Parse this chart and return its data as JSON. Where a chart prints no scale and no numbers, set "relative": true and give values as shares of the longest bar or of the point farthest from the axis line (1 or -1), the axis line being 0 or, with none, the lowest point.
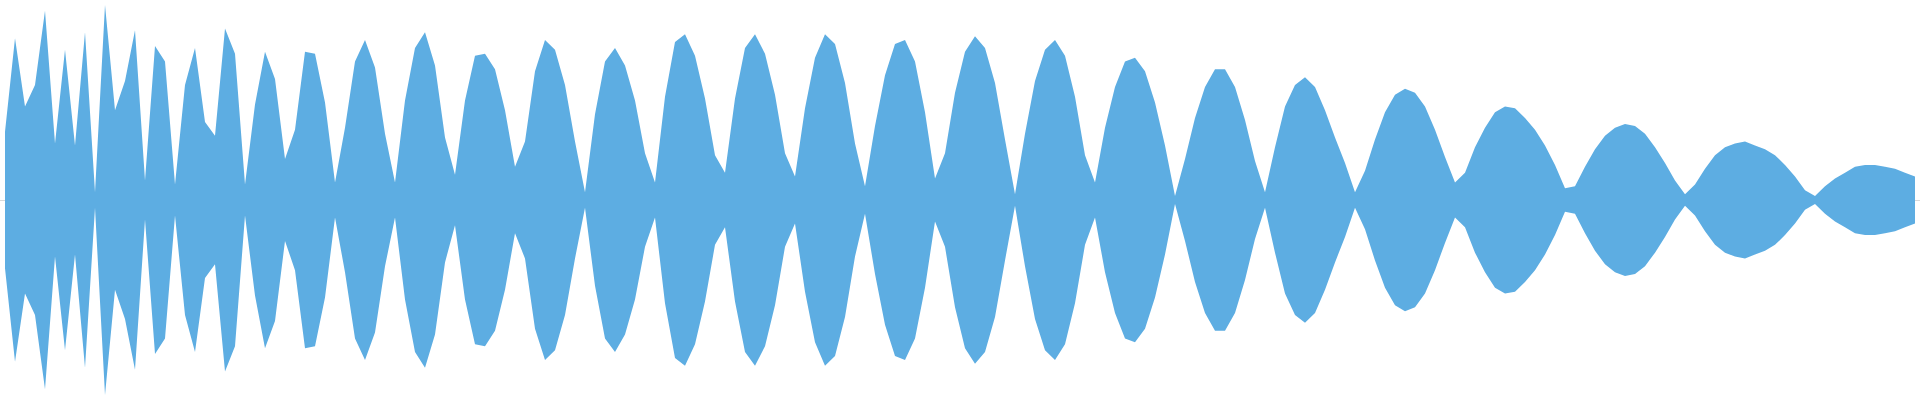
{
  "chart_data": {
    "type": "area",
    "relative": true,
    "categories": [
      null,
      null,
      null,
      null,
      null,
      null,
      null,
      null,
      null,
      null,
      null,
      null,
      null,
      null,
      null,
      null,
      null,
      null,
      null,
      null,
      null,
      null,
      null,
      null,
      null,
      null,
      null,
      null,
      null,
      null,
      null,
      null,
      null,
      null,
      null,
      null,
      null,
      null,
      null,
      null,
      null,
      null,
      null,
      null,
      null,
      null,
      null,
      null,
      null,
      null,
      null,
      null,
      null,
      null,
      null,
      null,
      null,
      null,
      null,
      null,
      null,
      null,
      null,
      null,
      null,
      null,
      null,
      null,
      null,
      null,
      null,
      null,
      null,
      null,
      null,
      null,
      null,
      null,
      null,
      null,
      null,
      null,
      null,
      null,
      null,
      null,
      null,
      null,
      null,
      null,
      null,
      null,
      null,
      null,
      null,
      null,
      null,
      null,
      null,
      null,
      null,
      null,
      null,
      null,
      null,
      null,
      null,
      null,
      null,
      null,
      null,
      null,
      null,
      null,
      null,
      null,
      null,
      null,
      null,
      null,
      null,
      null,
      null,
      null,
      null,
      null,
      null,
      null,
      null,
      null,
      null,
      null,
      null,
      null,
      null,
      null,
      null,
      null,
      null,
      null,
      null,
      null,
      null,
      null,
      null,
      null,
      null,
      null,
      null,
      null,
      null,
      null,
      null,
      null,
      null,
      null,
      null,
      null,
      null,
      null,
      null,
      null,
      null,
      null,
      null,
      null,
      null,
      null,
      null,
      null,
      null,
      null,
      null,
      null,
      null,
      null,
      null,
      null,
      null,
      null,
      null,
      null,
      null,
      null,
      null,
      null,
      null,
      null,
      null,
      null,
      null,
      null
    ],
    "series": [
      {
        "color": "#5dade2",
        "values": [
          0.35,
          0.83,
          0.48,
          0.59,
          0.97,
          0.29,
          0.77,
          0.28,
          0.86,
          0.04,
          1,
          0.46,
          0.61,
          0.87,
          0.1,
          0.79,
          0.71,
          0.08,
          0.59,
          0.78,
          0.4,
          0.33,
          0.88,
          0.75,
          0.08,
          0.49,
          0.76,
          0.62,
          0.21,
          0.36,
          0.76,
          0.75,
          0.5,
          0.09,
          0.37,
          0.71,
          0.82,
          0.68,
          0.34,
          0.09,
          0.51,
          0.78,
          0.86,
          0.69,
          0.32,
          0.13,
          0.51,
          0.74,
          0.75,
          0.67,
          0.46,
          0.17,
          0.3,
          0.66,
          0.82,
          0.77,
          0.59,
          0.3,
          0.04,
          0.44,
          0.71,
          0.78,
          0.69,
          0.51,
          0.24,
          0.09,
          0.53,
          0.81,
          0.85,
          0.74,
          0.52,
          0.23,
          0.14,
          0.52,
          0.78,
          0.85,
          0.75,
          0.54,
          0.24,
          0.12,
          0.47,
          0.73,
          0.85,
          0.8,
          0.6,
          0.29,
          0.07,
          0.38,
          0.64,
          0.8,
          0.82,
          0.71,
          0.45,
          0.11,
          0.24,
          0.55,
          0.76,
          0.84,
          0.78,
          0.6,
          0.31,
          0.03,
          0.34,
          0.61,
          0.77,
          0.82,
          0.74,
          0.53,
          0.23,
          0.09,
          0.37,
          0.58,
          0.71,
          0.73,
          0.66,
          0.5,
          0.28,
          0.02,
          0.21,
          0.42,
          0.58,
          0.67,
          0.67,
          0.58,
          0.41,
          0.2,
          0.04,
          0.27,
          0.48,
          0.59,
          0.63,
          0.58,
          0.46,
          0.32,
          0.19,
          0.04,
          0.15,
          0.31,
          0.45,
          0.54,
          0.57,
          0.55,
          0.48,
          0.36,
          0.22,
          0.09,
          0.14,
          0.27,
          0.37,
          0.45,
          0.48,
          0.47,
          0.42,
          0.36,
          0.28,
          0.18,
          0.06,
          0.07,
          0.17,
          0.26,
          0.33,
          0.37,
          0.39,
          0.38,
          0.34,
          0.27,
          0.19,
          0.1,
          0.03,
          0.08,
          0.16,
          0.23,
          0.27,
          0.29,
          0.3,
          0.28,
          0.26,
          0.23,
          0.18,
          0.12,
          0.05,
          0.02,
          0.07,
          0.11,
          0.14,
          0.17,
          0.18,
          0.18,
          0.17,
          0.16,
          0.14,
          0.12
        ]
      },
      {
        "color": "#5dade2",
        "values": [
          -0.35,
          -0.83,
          -0.48,
          -0.59,
          -0.97,
          -0.29,
          -0.77,
          -0.28,
          -0.86,
          -0.04,
          -1,
          -0.46,
          -0.61,
          -0.87,
          -0.1,
          -0.79,
          -0.71,
          -0.08,
          -0.59,
          -0.78,
          -0.4,
          -0.33,
          -0.88,
          -0.75,
          -0.08,
          -0.49,
          -0.76,
          -0.62,
          -0.21,
          -0.36,
          -0.76,
          -0.75,
          -0.5,
          -0.09,
          -0.37,
          -0.71,
          -0.82,
          -0.68,
          -0.34,
          -0.09,
          -0.51,
          -0.78,
          -0.86,
          -0.69,
          -0.32,
          -0.13,
          -0.51,
          -0.74,
          -0.75,
          -0.67,
          -0.46,
          -0.17,
          -0.3,
          -0.66,
          -0.82,
          -0.77,
          -0.59,
          -0.3,
          -0.04,
          -0.44,
          -0.71,
          -0.78,
          -0.69,
          -0.51,
          -0.24,
          -0.09,
          -0.53,
          -0.81,
          -0.85,
          -0.74,
          -0.52,
          -0.23,
          -0.14,
          -0.52,
          -0.78,
          -0.85,
          -0.75,
          -0.54,
          -0.24,
          -0.12,
          -0.47,
          -0.73,
          -0.85,
          -0.8,
          -0.6,
          -0.29,
          -0.07,
          -0.38,
          -0.64,
          -0.8,
          -0.82,
          -0.71,
          -0.45,
          -0.11,
          -0.24,
          -0.55,
          -0.76,
          -0.84,
          -0.78,
          -0.6,
          -0.31,
          -0.03,
          -0.34,
          -0.61,
          -0.77,
          -0.82,
          -0.74,
          -0.53,
          -0.23,
          -0.09,
          -0.37,
          -0.58,
          -0.71,
          -0.73,
          -0.66,
          -0.5,
          -0.28,
          -0.02,
          -0.21,
          -0.42,
          -0.58,
          -0.67,
          -0.67,
          -0.58,
          -0.41,
          -0.2,
          -0.04,
          -0.27,
          -0.48,
          -0.59,
          -0.63,
          -0.58,
          -0.46,
          -0.32,
          -0.19,
          -0.04,
          -0.15,
          -0.31,
          -0.45,
          -0.54,
          -0.57,
          -0.55,
          -0.48,
          -0.36,
          -0.22,
          -0.09,
          -0.14,
          -0.27,
          -0.37,
          -0.45,
          -0.48,
          -0.47,
          -0.42,
          -0.36,
          -0.28,
          -0.18,
          -0.06,
          -0.07,
          -0.17,
          -0.26,
          -0.33,
          -0.37,
          -0.39,
          -0.38,
          -0.34,
          -0.27,
          -0.19,
          -0.1,
          -0.03,
          -0.08,
          -0.16,
          -0.23,
          -0.27,
          -0.29,
          -0.3,
          -0.28,
          -0.26,
          -0.23,
          -0.18,
          -0.12,
          -0.05,
          -0.02,
          -0.07,
          -0.11,
          -0.14,
          -0.17,
          -0.18,
          -0.18,
          -0.17,
          -0.16,
          -0.14,
          -0.12
        ]
      }
    ]
  }
}
